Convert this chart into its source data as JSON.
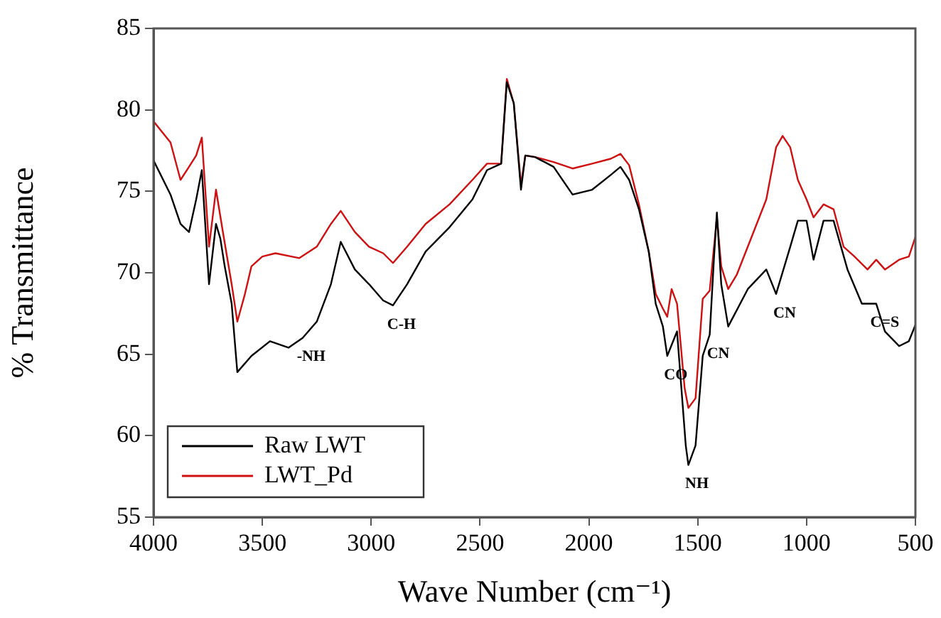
{
  "chart_data": {
    "type": "line",
    "xlabel": "Wave Number (cm⁻¹)",
    "ylabel": "% Transmittance",
    "xlim": [
      4000,
      500
    ],
    "xticks": [
      4000,
      3500,
      3000,
      2500,
      2000,
      1500,
      1000,
      500
    ],
    "ylim": [
      55,
      85
    ],
    "yticks": [
      55,
      60,
      65,
      70,
      75,
      80,
      85
    ],
    "grid": false,
    "legend": "bottom left",
    "marker": "none",
    "line_style": "solid",
    "series": [
      {
        "name": "Raw LWT",
        "color": "#000000",
        "x": [
          4000,
          3922,
          3876,
          3837,
          3804,
          3778,
          3745,
          3713,
          3693,
          3673,
          3641,
          3615,
          3550,
          3465,
          3380,
          3315,
          3250,
          3185,
          3140,
          3075,
          3010,
          2945,
          2900,
          2835,
          2750,
          2640,
          2535,
          2468,
          2403,
          2377,
          2345,
          2325,
          2312,
          2292,
          2247,
          2162,
          2075,
          1985,
          1900,
          1855,
          1815,
          1770,
          1725,
          1693,
          1660,
          1640,
          1595,
          1555,
          1543,
          1510,
          1477,
          1445,
          1425,
          1412,
          1392,
          1360,
          1270,
          1185,
          1140,
          1075,
          1040,
          1000,
          968,
          922,
          876,
          812,
          746,
          680,
          640,
          575,
          530,
          500
        ],
        "values": [
          76.9,
          74.8,
          73.0,
          72.5,
          74.5,
          76.3,
          69.3,
          73.0,
          72.1,
          70.4,
          68.1,
          63.9,
          64.9,
          65.8,
          65.4,
          66.0,
          67.0,
          69.3,
          71.9,
          70.2,
          69.3,
          68.3,
          68.0,
          69.3,
          71.3,
          72.8,
          74.5,
          76.3,
          76.7,
          81.7,
          80.4,
          77.2,
          75.1,
          77.2,
          77.1,
          76.5,
          74.8,
          75.1,
          76.0,
          76.5,
          75.7,
          73.9,
          71.3,
          68.1,
          66.7,
          64.9,
          66.4,
          59.4,
          58.2,
          59.4,
          64.9,
          66.2,
          71.0,
          73.7,
          69.3,
          66.7,
          69.0,
          70.2,
          68.7,
          71.6,
          73.2,
          73.2,
          70.8,
          73.2,
          73.2,
          70.2,
          68.1,
          68.1,
          66.4,
          65.5,
          65.8,
          66.8
        ]
      },
      {
        "name": "LWT_Pd",
        "color": "#d01010",
        "x": [
          4000,
          3922,
          3876,
          3837,
          3804,
          3778,
          3745,
          3713,
          3680,
          3641,
          3615,
          3580,
          3550,
          3500,
          3440,
          3330,
          3250,
          3185,
          3140,
          3075,
          3010,
          2945,
          2900,
          2835,
          2750,
          2640,
          2535,
          2468,
          2403,
          2377,
          2345,
          2312,
          2292,
          2247,
          2162,
          2075,
          1985,
          1900,
          1855,
          1815,
          1770,
          1725,
          1693,
          1660,
          1640,
          1620,
          1595,
          1560,
          1543,
          1510,
          1477,
          1445,
          1412,
          1392,
          1360,
          1320,
          1270,
          1185,
          1140,
          1110,
          1075,
          1040,
          1000,
          968,
          922,
          876,
          830,
          780,
          720,
          680,
          640,
          575,
          530,
          500
        ],
        "values": [
          79.3,
          78.0,
          75.7,
          76.5,
          77.2,
          78.3,
          71.6,
          75.1,
          72.4,
          69.3,
          67.0,
          68.7,
          70.4,
          71.0,
          71.2,
          70.9,
          71.6,
          73.0,
          73.8,
          72.5,
          71.6,
          71.2,
          70.6,
          71.6,
          73.0,
          74.2,
          75.7,
          76.7,
          76.7,
          81.9,
          80.4,
          75.4,
          77.2,
          77.1,
          76.8,
          76.4,
          76.7,
          77.0,
          77.3,
          76.6,
          74.2,
          71.3,
          68.7,
          67.8,
          67.3,
          69.0,
          68.1,
          62.9,
          61.7,
          62.3,
          68.4,
          68.9,
          73.4,
          70.4,
          69.0,
          69.9,
          71.6,
          74.5,
          77.7,
          78.4,
          77.7,
          75.7,
          74.5,
          73.4,
          74.2,
          73.9,
          71.6,
          71.0,
          70.2,
          70.8,
          70.2,
          70.8,
          71.0,
          72.2
        ]
      }
    ],
    "annotations": [
      {
        "text": "-NH",
        "x": 3315,
        "y": 66.0
      },
      {
        "text": "C-H",
        "x": 2900,
        "y": 68.0
      },
      {
        "text": "CO",
        "x": 1640,
        "y": 64.9
      },
      {
        "text": "NH",
        "x": 1543,
        "y": 58.2
      },
      {
        "text": "CN",
        "x": 1445,
        "y": 66.2
      },
      {
        "text": "CN",
        "x": 1140,
        "y": 68.7
      },
      {
        "text": "C=S",
        "x": 680,
        "y": 68.1
      }
    ]
  }
}
